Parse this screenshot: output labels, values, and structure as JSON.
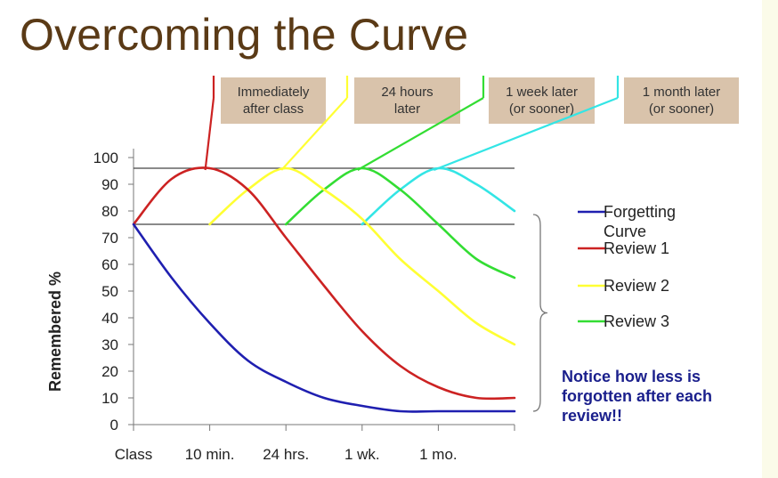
{
  "title": "Overcoming the Curve",
  "boxes": {
    "immediately": "Immediately\nafter class",
    "hours24": "24 hours\nlater",
    "week": "1 week later\n(or sooner)",
    "month": "1 month later\n(or sooner)"
  },
  "notice": "Notice how less is forgotten after each review!!",
  "colors": {
    "forgetting": "#1f1fb0",
    "review1": "#cc2222",
    "review2": "#ffff33",
    "review3": "#33dd33",
    "review4": "#33e5e5",
    "box": "#d9c3ab",
    "title": "#5a3a16",
    "notice": "#1a1f8c"
  },
  "chart_data": {
    "type": "line",
    "ylabel": "Remembered %",
    "xlabel": "",
    "categories": [
      "Class",
      "10 min.",
      "24 hrs.",
      "1 wk.",
      "1 mo."
    ],
    "ylim": [
      0,
      100
    ],
    "yticks": [
      0,
      10,
      20,
      30,
      40,
      50,
      60,
      70,
      80,
      90,
      100
    ],
    "reference_lines": [
      96,
      75
    ],
    "legend_position": "right",
    "series": [
      {
        "name": "Forgetting Curve",
        "color": "#1f1fb0",
        "points": [
          [
            0,
            75
          ],
          [
            0.5,
            55
          ],
          [
            1,
            38
          ],
          [
            1.5,
            24
          ],
          [
            2,
            16
          ],
          [
            2.5,
            10
          ],
          [
            3,
            7
          ],
          [
            3.5,
            5
          ],
          [
            4,
            5
          ],
          [
            5,
            5
          ]
        ]
      },
      {
        "name": "Review 1",
        "color": "#cc2222",
        "points": [
          [
            0,
            75
          ],
          [
            0.5,
            92
          ],
          [
            1,
            96
          ],
          [
            1.5,
            88
          ],
          [
            2,
            70
          ],
          [
            2.5,
            52
          ],
          [
            3,
            35
          ],
          [
            3.5,
            22
          ],
          [
            4,
            14
          ],
          [
            4.5,
            10
          ],
          [
            5,
            10
          ]
        ]
      },
      {
        "name": "Review 2",
        "color": "#ffff33",
        "points": [
          [
            1,
            75
          ],
          [
            1.5,
            88
          ],
          [
            2,
            96
          ],
          [
            2.5,
            88
          ],
          [
            3,
            77
          ],
          [
            3.5,
            62
          ],
          [
            4,
            50
          ],
          [
            4.5,
            38
          ],
          [
            5,
            30
          ]
        ]
      },
      {
        "name": "Review 3",
        "color": "#33dd33",
        "points": [
          [
            2,
            75
          ],
          [
            2.5,
            88
          ],
          [
            3,
            96
          ],
          [
            3.5,
            88
          ],
          [
            4,
            75
          ],
          [
            4.5,
            62
          ],
          [
            5,
            55
          ]
        ]
      },
      {
        "name": "",
        "color": "#33e5e5",
        "points": [
          [
            3,
            75
          ],
          [
            3.5,
            88
          ],
          [
            4,
            96
          ],
          [
            4.5,
            90
          ],
          [
            5,
            80
          ]
        ]
      }
    ]
  }
}
